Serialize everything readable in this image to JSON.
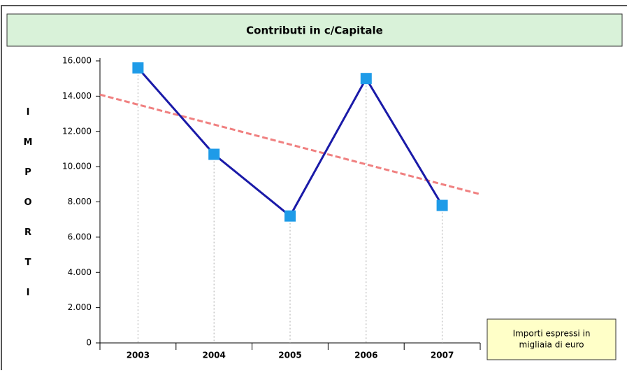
{
  "chart_data": {
    "type": "line",
    "title": "Contributi in c/Capitale",
    "y_label": "IMPORTI",
    "categories": [
      "2003",
      "2004",
      "2005",
      "2006",
      "2007"
    ],
    "series": [
      {
        "color": "#1a1aa8",
        "marker_color": "#1e9be8",
        "values": [
          15600,
          10700,
          7200,
          15000,
          7800
        ]
      }
    ],
    "trend": {
      "color": "#f08080",
      "values": [
        13520,
        12390,
        11260,
        10130,
        9000
      ]
    },
    "ylim": [
      0,
      16000
    ],
    "yticks": [
      0,
      {
        "value": 2000,
        "label": "2.000"
      },
      {
        "value": 4000,
        "label": "4.000"
      },
      {
        "value": 6000,
        "label": "6.000"
      },
      {
        "value": 8000,
        "label": "8.000"
      },
      {
        "value": 10000,
        "label": "10.000"
      },
      {
        "value": 12000,
        "label": "12.000"
      },
      {
        "value": 14000,
        "label": "14.000"
      },
      {
        "value": 16000,
        "label": "16.000"
      }
    ],
    "annotation": [
      "Importi espressi in",
      "migliaia di euro"
    ]
  }
}
